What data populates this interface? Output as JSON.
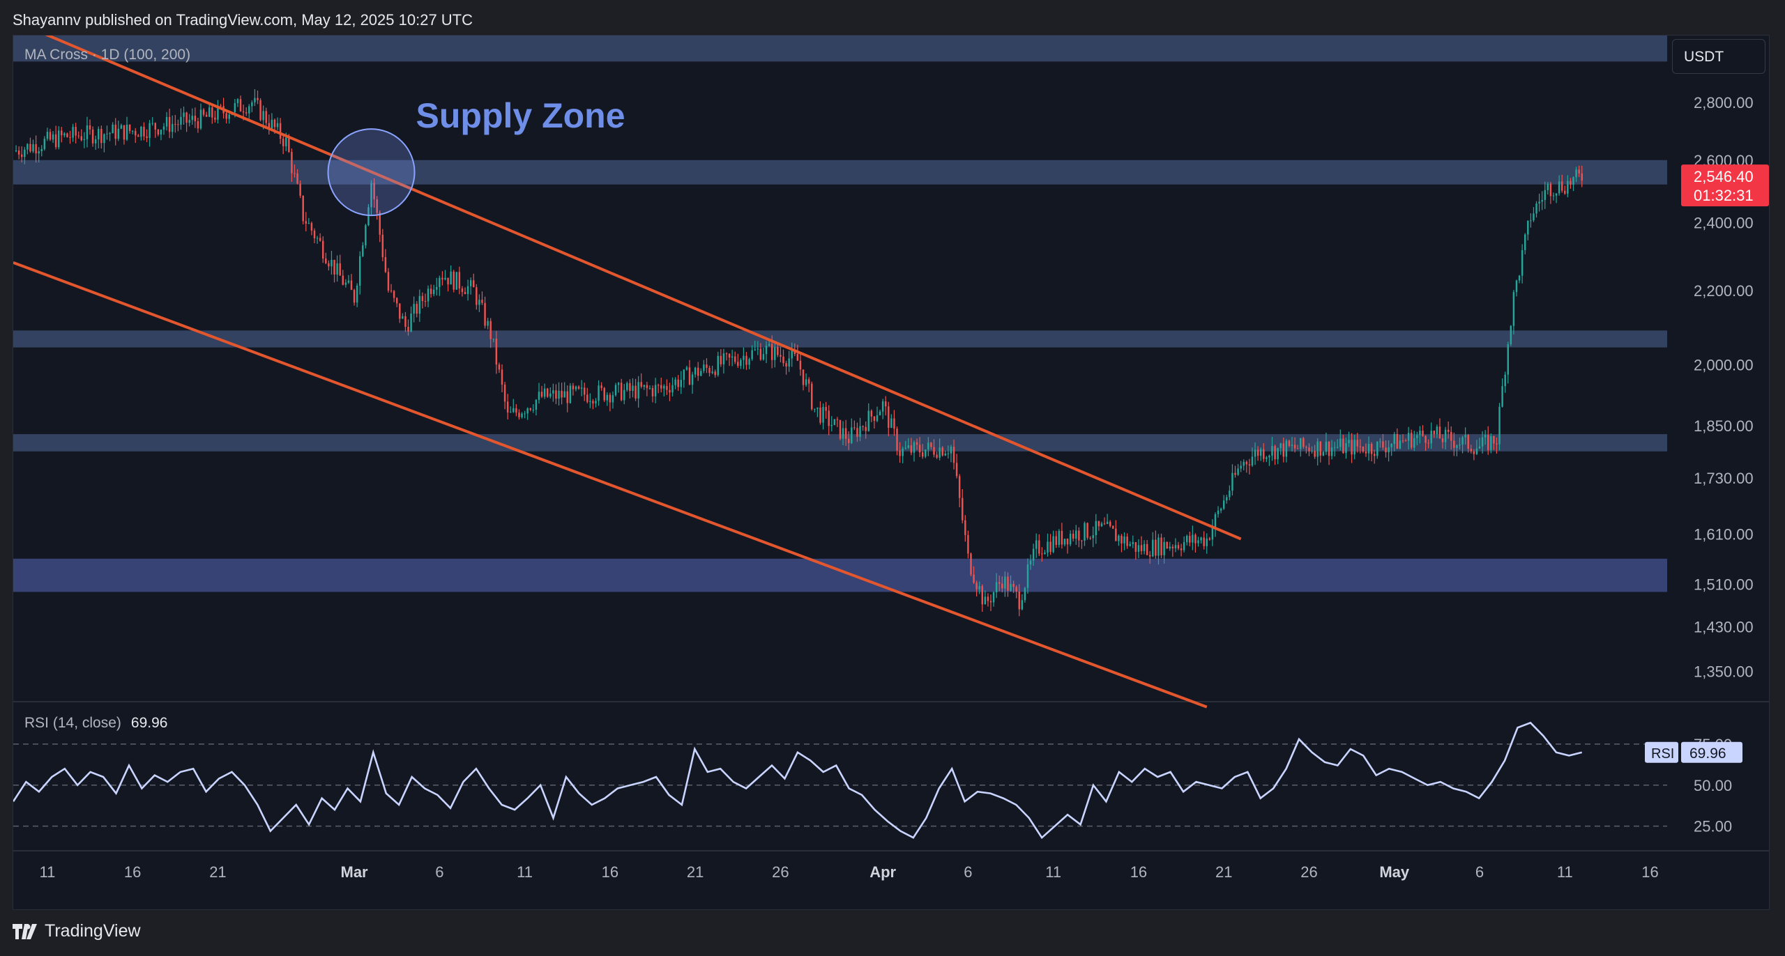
{
  "header": {
    "publisher_line": "Shayannv published on TradingView.com, May 12, 2025 10:27 UTC"
  },
  "main_pane": {
    "study_title": "MA Cross · 1D (100, 200)",
    "currency": "USDT"
  },
  "rsi_pane": {
    "title": "RSI (14, close)",
    "value": "69.96",
    "axis_tag_label": "RSI",
    "axis_tag_value": "69.96"
  },
  "annotation": {
    "label": "Supply Zone"
  },
  "price_tag": {
    "price": "2,546.40",
    "countdown": "01:32:31"
  },
  "footer": {
    "brand": "TradingView"
  },
  "colors": {
    "background": "#131722",
    "up": "#26a69a",
    "down": "#ef5350",
    "channel": "#e4572e",
    "zone": "#3a4a6b",
    "annotation_text": "#6e8ee8",
    "rsi_line": "#c9d5ff",
    "price_tag": "#f23645"
  },
  "chart_data": [
    {
      "type": "candlestick",
      "y_scale": "log",
      "ylim": [
        1300,
        3050
      ],
      "y_ticks": [
        {
          "v": 2800,
          "label": "2,800.00"
        },
        {
          "v": 2600,
          "label": "2,600.00"
        },
        {
          "v": 2400,
          "label": "2,400.00"
        },
        {
          "v": 2200,
          "label": "2,200.00"
        },
        {
          "v": 2000,
          "label": "2,000.00"
        },
        {
          "v": 1850,
          "label": "1,850.00"
        },
        {
          "v": 1730,
          "label": "1,730.00"
        },
        {
          "v": 1610,
          "label": "1,610.00"
        },
        {
          "v": 1510,
          "label": "1,510.00"
        },
        {
          "v": 1430,
          "label": "1,430.00"
        },
        {
          "v": 1350,
          "label": "1,350.00"
        }
      ],
      "x_start": "2025-02-09",
      "x_end": "2025-05-17",
      "x_ticks": [
        {
          "date": "2025-02-11",
          "label": "11"
        },
        {
          "date": "2025-02-16",
          "label": "16"
        },
        {
          "date": "2025-02-21",
          "label": "21"
        },
        {
          "date": "2025-03-01",
          "label": "Mar"
        },
        {
          "date": "2025-03-06",
          "label": "6"
        },
        {
          "date": "2025-03-11",
          "label": "11"
        },
        {
          "date": "2025-03-16",
          "label": "16"
        },
        {
          "date": "2025-03-21",
          "label": "21"
        },
        {
          "date": "2025-03-26",
          "label": "26"
        },
        {
          "date": "2025-04-01",
          "label": "Apr"
        },
        {
          "date": "2025-04-06",
          "label": "6"
        },
        {
          "date": "2025-04-11",
          "label": "11"
        },
        {
          "date": "2025-04-16",
          "label": "16"
        },
        {
          "date": "2025-04-21",
          "label": "21"
        },
        {
          "date": "2025-04-26",
          "label": "26"
        },
        {
          "date": "2025-05-01",
          "label": "May"
        },
        {
          "date": "2025-05-06",
          "label": "6"
        },
        {
          "date": "2025-05-11",
          "label": "11"
        },
        {
          "date": "2025-05-16",
          "label": "16"
        }
      ],
      "price_path": [
        {
          "date": "2025-02-09",
          "price": 2630
        },
        {
          "date": "2025-02-12",
          "price": 2680
        },
        {
          "date": "2025-02-16",
          "price": 2700
        },
        {
          "date": "2025-02-20",
          "price": 2740
        },
        {
          "date": "2025-02-23",
          "price": 2800
        },
        {
          "date": "2025-02-25",
          "price": 2660
        },
        {
          "date": "2025-02-26",
          "price": 2420
        },
        {
          "date": "2025-02-28",
          "price": 2250
        },
        {
          "date": "2025-03-01",
          "price": 2180
        },
        {
          "date": "2025-03-02",
          "price": 2530
        },
        {
          "date": "2025-03-03",
          "price": 2200
        },
        {
          "date": "2025-03-04",
          "price": 2100
        },
        {
          "date": "2025-03-06",
          "price": 2250
        },
        {
          "date": "2025-03-08",
          "price": 2200
        },
        {
          "date": "2025-03-09",
          "price": 2080
        },
        {
          "date": "2025-03-10",
          "price": 1870
        },
        {
          "date": "2025-03-12",
          "price": 1920
        },
        {
          "date": "2025-03-16",
          "price": 1930
        },
        {
          "date": "2025-03-19",
          "price": 1940
        },
        {
          "date": "2025-03-21",
          "price": 1980
        },
        {
          "date": "2025-03-25",
          "price": 2040
        },
        {
          "date": "2025-03-27",
          "price": 2010
        },
        {
          "date": "2025-03-28",
          "price": 1890
        },
        {
          "date": "2025-03-30",
          "price": 1820
        },
        {
          "date": "2025-04-01",
          "price": 1900
        },
        {
          "date": "2025-04-02",
          "price": 1790
        },
        {
          "date": "2025-04-05",
          "price": 1800
        },
        {
          "date": "2025-04-06",
          "price": 1560
        },
        {
          "date": "2025-04-07",
          "price": 1470
        },
        {
          "date": "2025-04-08",
          "price": 1520
        },
        {
          "date": "2025-04-09",
          "price": 1480
        },
        {
          "date": "2025-04-10",
          "price": 1580
        },
        {
          "date": "2025-04-12",
          "price": 1610
        },
        {
          "date": "2025-04-14",
          "price": 1620
        },
        {
          "date": "2025-04-16",
          "price": 1580
        },
        {
          "date": "2025-04-20",
          "price": 1600
        },
        {
          "date": "2025-04-22",
          "price": 1760
        },
        {
          "date": "2025-04-23",
          "price": 1790
        },
        {
          "date": "2025-04-26",
          "price": 1800
        },
        {
          "date": "2025-04-30",
          "price": 1800
        },
        {
          "date": "2025-05-03",
          "price": 1830
        },
        {
          "date": "2025-05-06",
          "price": 1800
        },
        {
          "date": "2025-05-07",
          "price": 1820
        },
        {
          "date": "2025-05-08",
          "price": 2180
        },
        {
          "date": "2025-05-09",
          "price": 2420
        },
        {
          "date": "2025-05-10",
          "price": 2510
        },
        {
          "date": "2025-05-11",
          "price": 2520
        },
        {
          "date": "2025-05-12",
          "price": 2546.4
        }
      ],
      "zones": [
        {
          "from": 2950,
          "to": 3050
        },
        {
          "from": 2520,
          "to": 2600
        },
        {
          "from": 2045,
          "to": 2090
        },
        {
          "from": 1790,
          "to": 1830
        },
        {
          "from": 1495,
          "to": 1560
        }
      ],
      "channel_lines": [
        {
          "from": {
            "date": "2025-02-10",
            "price": 3080
          },
          "to": {
            "date": "2025-04-22",
            "price": 1600
          }
        },
        {
          "from": {
            "date": "2025-02-09",
            "price": 2280
          },
          "to": {
            "date": "2025-04-20",
            "price": 1290
          }
        }
      ],
      "annotation": {
        "date": "2025-03-02",
        "price": 2560,
        "label": "Supply Zone"
      },
      "last_price": 2546.4
    },
    {
      "type": "line",
      "title": "RSI (14, close)",
      "ylim": [
        10,
        100
      ],
      "y_ticks": [
        {
          "v": 75,
          "label": "75.00"
        },
        {
          "v": 50,
          "label": "50.00"
        },
        {
          "v": 25,
          "label": "25.00"
        }
      ],
      "series": [
        {
          "values": [
            40,
            52,
            46,
            55,
            60,
            50,
            58,
            55,
            45,
            62,
            48,
            56,
            52,
            58,
            60,
            46,
            54,
            58,
            50,
            38,
            22,
            30,
            38,
            26,
            42,
            35,
            48,
            40,
            70,
            45,
            38,
            55,
            48,
            44,
            36,
            52,
            60,
            48,
            38,
            35,
            42,
            50,
            30,
            55,
            45,
            38,
            42,
            48,
            50,
            52,
            55,
            44,
            38,
            72,
            58,
            60,
            52,
            48,
            55,
            62,
            54,
            70,
            65,
            58,
            62,
            48,
            44,
            35,
            28,
            22,
            18,
            30,
            48,
            60,
            40,
            46,
            45,
            42,
            38,
            30,
            18,
            25,
            32,
            26,
            50,
            40,
            58,
            52,
            60,
            55,
            58,
            46,
            52,
            50,
            48,
            55,
            58,
            42,
            48,
            60,
            78,
            70,
            64,
            62,
            72,
            68,
            56,
            60,
            58,
            54,
            50,
            52,
            48,
            46,
            42,
            52,
            65,
            85,
            88,
            80,
            70,
            68,
            69.96
          ]
        }
      ]
    }
  ]
}
